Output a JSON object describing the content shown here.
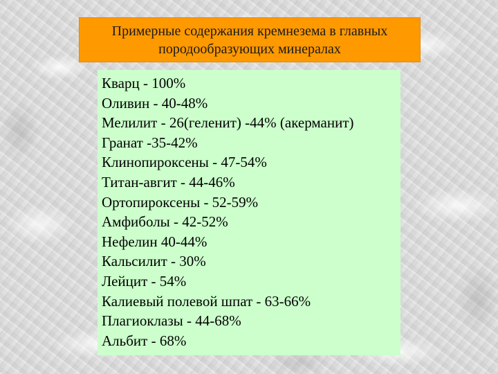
{
  "title": {
    "line1": "Примерные содержания кремнезема в главных",
    "line2": "породообразующих минералах"
  },
  "minerals": [
    "Кварц - 100%",
    "Оливин - 40-48%",
    "Мелилит - 26(геленит) -44% (акерманит)",
    "Гранат -35-42%",
    "Клинопироксены - 47-54%",
    "Титан-авгит - 44-46%",
    "Ортопироксены - 52-59%",
    "Амфиболы - 42-52%",
    "Нефелин 40-44%",
    "Кальсилит - 30%",
    "Лейцит - 54%",
    "Калиевый полевой шпат - 63-66%",
    "Плагиоклазы - 44-68%",
    "Альбит - 68%"
  ],
  "colors": {
    "title_background": "#ff9900",
    "content_background": "#ccffcc",
    "page_background": "#d9d9d9"
  }
}
